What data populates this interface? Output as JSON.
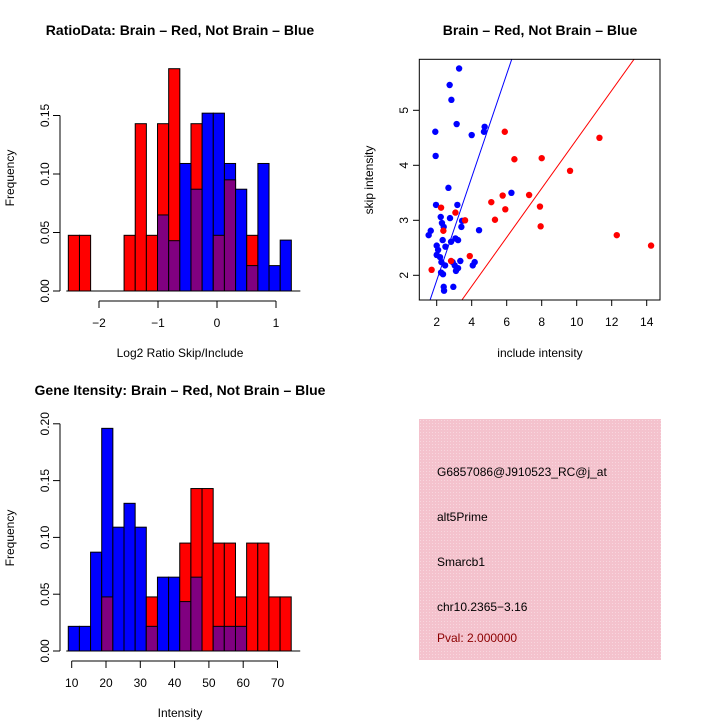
{
  "colors": {
    "group_a": "#ff0000",
    "group_b": "#0000ff",
    "overlap": "#800080",
    "info_bg": "#f4c2cd",
    "pval_text": "#8b0000"
  },
  "chart_data": [
    {
      "type": "bar",
      "subtype": "overlaid-histogram",
      "title": "RatioData: Brain – Red, Not Brain – Blue",
      "xlabel": "Log2 Ratio Skip/Include",
      "ylabel": "Frequency",
      "bin_start": -2.52,
      "bin_width": 0.189,
      "xlim": [
        -2.52,
        1.26
      ],
      "ylim": [
        0,
        0.19
      ],
      "xticks": [
        -2,
        -1,
        0,
        1
      ],
      "xtick_labels": [
        "−2",
        "−1",
        "0",
        "1"
      ],
      "yticks": [
        0,
        0.05,
        0.1,
        0.15
      ],
      "ytick_labels": [
        "0.00",
        "0.05",
        "0.10",
        "0.15"
      ],
      "series": [
        {
          "name": "Brain",
          "color": "red",
          "values": [
            0.0476,
            0.0476,
            0,
            0,
            0,
            0.0476,
            0.143,
            0.0476,
            0.143,
            0.19,
            0,
            0.143,
            0,
            0.0476,
            0.095,
            0,
            0.0476,
            0,
            0,
            0
          ]
        },
        {
          "name": "Not Brain",
          "color": "blue",
          "values": [
            0,
            0,
            0,
            0,
            0,
            0,
            0,
            0,
            0.065,
            0.043,
            0.109,
            0.087,
            0.152,
            0.152,
            0.109,
            0.087,
            0.0217,
            0.109,
            0.0217,
            0.0435
          ]
        }
      ]
    },
    {
      "type": "scatter",
      "title": "Brain – Red, Not Brain – Blue",
      "xlabel": "include intensity",
      "ylabel": "skip intensity",
      "xlim": [
        1.0,
        14.76
      ],
      "ylim": [
        1.55,
        5.93
      ],
      "xticks": [
        2,
        4,
        6,
        8,
        10,
        12,
        14
      ],
      "xtick_labels": [
        "2",
        "4",
        "6",
        "8",
        "10",
        "12",
        "14"
      ],
      "yticks": [
        2,
        3,
        4,
        5
      ],
      "ytick_labels": [
        "2",
        "3",
        "4",
        "5"
      ],
      "lines": [
        {
          "name": "Not Brain fit",
          "color": "blue",
          "slope": 0.938,
          "intercept": 0.03
        },
        {
          "name": "Brain fit",
          "color": "red",
          "slope": 0.445,
          "intercept": 0.02
        }
      ],
      "series": [
        {
          "name": "Not Brain",
          "color": "blue",
          "points": [
            [
              3.28,
              5.76
            ],
            [
              2.74,
              5.46
            ],
            [
              2.84,
              5.19
            ],
            [
              1.92,
              4.61
            ],
            [
              3.14,
              4.75
            ],
            [
              4.0,
              4.55
            ],
            [
              4.74,
              4.7
            ],
            [
              4.7,
              4.61
            ],
            [
              1.94,
              4.17
            ],
            [
              2.67,
              3.59
            ],
            [
              6.27,
              3.5
            ],
            [
              1.96,
              3.28
            ],
            [
              3.18,
              3.28
            ],
            [
              2.23,
              3.06
            ],
            [
              2.76,
              3.04
            ],
            [
              3.45,
              2.99
            ],
            [
              2.3,
              2.95
            ],
            [
              2.4,
              2.88
            ],
            [
              3.41,
              2.88
            ],
            [
              1.66,
              2.81
            ],
            [
              1.54,
              2.73
            ],
            [
              4.42,
              2.82
            ],
            [
              2.34,
              2.64
            ],
            [
              2.82,
              2.61
            ],
            [
              3.07,
              2.67
            ],
            [
              3.22,
              2.64
            ],
            [
              2.0,
              2.54
            ],
            [
              2.5,
              2.52
            ],
            [
              2.08,
              2.46
            ],
            [
              2.0,
              2.37
            ],
            [
              2.19,
              2.33
            ],
            [
              3.35,
              2.26
            ],
            [
              2.27,
              2.24
            ],
            [
              2.91,
              2.24
            ],
            [
              2.48,
              2.18
            ],
            [
              3.03,
              2.18
            ],
            [
              4.17,
              2.24
            ],
            [
              4.06,
              2.18
            ],
            [
              3.22,
              2.13
            ],
            [
              3.1,
              2.08
            ],
            [
              2.25,
              2.05
            ],
            [
              2.36,
              2.02
            ],
            [
              2.4,
              1.79
            ],
            [
              2.95,
              1.79
            ],
            [
              2.42,
              1.72
            ]
          ]
        },
        {
          "name": "Brain",
          "color": "red",
          "points": [
            [
              5.89,
              4.61
            ],
            [
              11.3,
              4.5
            ],
            [
              6.44,
              4.11
            ],
            [
              8.0,
              4.13
            ],
            [
              9.62,
              3.9
            ],
            [
              5.77,
              3.45
            ],
            [
              7.28,
              3.46
            ],
            [
              5.12,
              3.33
            ],
            [
              7.9,
              3.25
            ],
            [
              5.92,
              3.2
            ],
            [
              2.25,
              3.23
            ],
            [
              3.07,
              3.14
            ],
            [
              3.62,
              3.0
            ],
            [
              5.33,
              3.01
            ],
            [
              7.94,
              2.89
            ],
            [
              2.38,
              2.81
            ],
            [
              12.29,
              2.73
            ],
            [
              14.25,
              2.54
            ],
            [
              3.89,
              2.35
            ],
            [
              2.82,
              2.26
            ],
            [
              1.71,
              2.1
            ]
          ]
        }
      ]
    },
    {
      "type": "bar",
      "subtype": "overlaid-histogram",
      "title": "Gene Itensity: Brain – Red, Not Brain – Blue",
      "xlabel": "Intensity",
      "ylabel": "Frequency",
      "bin_start": 9.0,
      "bin_width": 3.25,
      "xlim": [
        9.0,
        74.0
      ],
      "ylim": [
        0,
        0.2
      ],
      "xticks": [
        10,
        20,
        30,
        40,
        50,
        60,
        70
      ],
      "xtick_labels": [
        "10",
        "20",
        "30",
        "40",
        "50",
        "60",
        "70"
      ],
      "yticks": [
        0,
        0.05,
        0.1,
        0.15,
        0.2
      ],
      "ytick_labels": [
        "0.00",
        "0.05",
        "0.10",
        "0.15",
        "0.20"
      ],
      "series": [
        {
          "name": "Brain",
          "color": "red",
          "values": [
            0,
            0,
            0,
            0.0476,
            0,
            0,
            0,
            0.0476,
            0,
            0,
            0.095,
            0.143,
            0.143,
            0.095,
            0.095,
            0.0476,
            0.095,
            0.095,
            0.0476,
            0.0476
          ]
        },
        {
          "name": "Not Brain",
          "color": "blue",
          "values": [
            0.0217,
            0.0217,
            0.087,
            0.196,
            0.109,
            0.13,
            0.109,
            0.0217,
            0.065,
            0.065,
            0.0435,
            0.065,
            0,
            0.0217,
            0.0217,
            0.0217,
            0,
            0,
            0,
            0
          ]
        }
      ]
    }
  ],
  "info_panel": {
    "probe_id": "G6857086@J910523_RC@j_at",
    "event_type": "alt5Prime",
    "gene": "Smarcb1",
    "location": "chr10.2365−3.16",
    "pval": "Pval: 2.000000"
  }
}
